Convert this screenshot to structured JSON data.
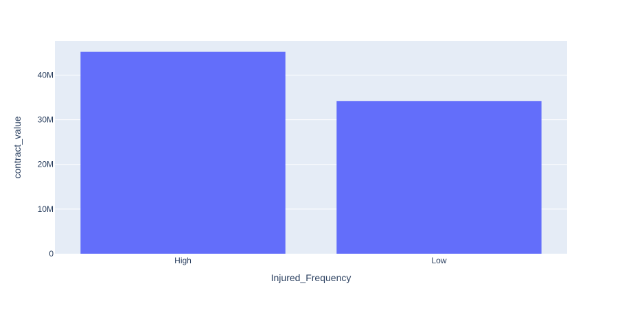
{
  "chart_data": {
    "type": "bar",
    "categories": [
      "High",
      "Low"
    ],
    "values": [
      45200000,
      34200000
    ],
    "xlabel": "Injured_Frequency",
    "ylabel": "contract_value",
    "ylim": [
      0,
      47600000
    ],
    "yticks": [
      {
        "value": 0,
        "label": "0"
      },
      {
        "value": 10000000,
        "label": "10M"
      },
      {
        "value": 20000000,
        "label": "20M"
      },
      {
        "value": 30000000,
        "label": "30M"
      },
      {
        "value": 40000000,
        "label": "40M"
      }
    ],
    "grid": true,
    "colors": {
      "bar": "#636efa",
      "plot_background": "#e5ecf6",
      "gridline": "#ffffff",
      "text": "#2a3f5f"
    }
  }
}
